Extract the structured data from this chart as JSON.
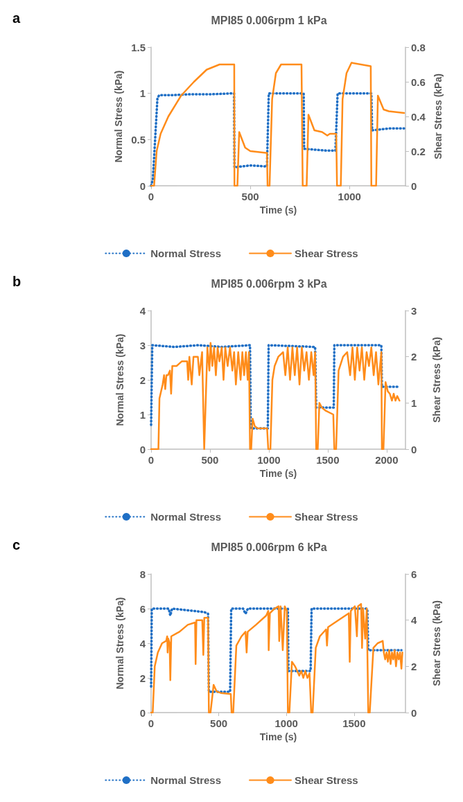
{
  "chart_data": [
    {
      "type": "line",
      "title": "MPI85 0.006rpm 1 kPa",
      "xlabel": "Time (s)",
      "ylabel": "Normal Stress (kPa)",
      "y2label": "Shear Stress (kPa)",
      "annotations": [
        "a"
      ],
      "xlim": [
        0,
        1282
      ],
      "xticks": [
        0,
        500,
        1000
      ],
      "ylim": [
        0,
        1.5
      ],
      "yticks": [
        0,
        0.5,
        1,
        1.5
      ],
      "y2lim": [
        0,
        0.8
      ],
      "y2ticks": [
        0,
        0.2,
        0.4,
        0.6,
        0.8
      ],
      "grid": false,
      "legend": "bottom",
      "marker": "none",
      "series": [
        {
          "name": "Normal Stress",
          "color": "#1f6fc5",
          "line_style": "dotted",
          "x": [
            0,
            9,
            15,
            32,
            41,
            100,
            200,
            300,
            410,
            418,
            420,
            500,
            578,
            584,
            593,
            700,
            758,
            769,
            771,
            888,
            924,
            929,
            940,
            1000,
            1094,
            1110,
            1114,
            1200,
            1275
          ],
          "values": [
            0.0,
            0.07,
            0.3,
            0.95,
            0.98,
            0.98,
            0.99,
            0.99,
            1.0,
            1.0,
            0.2,
            0.22,
            0.21,
            0.21,
            1.0,
            1.0,
            1.0,
            1.0,
            0.4,
            0.38,
            0.38,
            0.38,
            1.0,
            1.0,
            1.0,
            1.0,
            0.6,
            0.62,
            0.62
          ]
        },
        {
          "name": "Shear Stress",
          "color": "#ff8c1a",
          "line_style": "solid",
          "axis": "y2",
          "x": [
            0,
            15,
            28,
            48,
            87,
            151,
            216,
            280,
            345,
            410,
            419,
            420,
            435,
            444,
            474,
            500,
            578,
            584,
            587,
            597,
            610,
            629,
            655,
            758,
            764,
            784,
            793,
            823,
            862,
            888,
            901,
            933,
            937,
            956,
            965,
            985,
            1010,
            1107,
            1110,
            1134,
            1143,
            1172,
            1198,
            1275
          ],
          "values": [
            0,
            0,
            0.2,
            0.3,
            0.4,
            0.52,
            0.6,
            0.67,
            0.7,
            0.7,
            0.7,
            0,
            0,
            0.31,
            0.22,
            0.2,
            0.19,
            0.19,
            0,
            0,
            0.5,
            0.65,
            0.7,
            0.7,
            0,
            0,
            0.41,
            0.32,
            0.31,
            0.29,
            0.3,
            0.3,
            0,
            0,
            0.5,
            0.65,
            0.71,
            0.69,
            0,
            0,
            0.52,
            0.44,
            0.43,
            0.42
          ]
        }
      ]
    },
    {
      "type": "line",
      "title": "MPI85 0.006rpm 3 kPa",
      "xlabel": "Time (s)",
      "ylabel": "Normal Stress (kPa)",
      "y2label": "Shear Stress (kPa)",
      "annotations": [
        "b"
      ],
      "xlim": [
        0,
        2160
      ],
      "xticks": [
        0,
        500,
        1000,
        1500,
        2000
      ],
      "ylim": [
        0,
        4
      ],
      "yticks": [
        0,
        1,
        2,
        3,
        4
      ],
      "y2lim": [
        0,
        3
      ],
      "y2ticks": [
        0,
        1,
        2,
        3
      ],
      "grid": false,
      "legend": "bottom",
      "marker": "none",
      "series": [
        {
          "name": "Normal Stress",
          "color": "#1f6fc5",
          "line_style": "dotted",
          "x": [
            0,
            10,
            200,
            400,
            600,
            840,
            846,
            991,
            998,
            1393,
            1402,
            1551,
            1556,
            1955,
            1960,
            2109
          ],
          "values": [
            0.7,
            3.0,
            2.95,
            3.0,
            2.95,
            3.0,
            0.6,
            0.6,
            3.0,
            2.95,
            1.2,
            1.2,
            3.0,
            3.0,
            1.8,
            1.8
          ]
        },
        {
          "name": "Shear Stress",
          "color": "#ff8c1a",
          "line_style": "solid",
          "axis": "y2",
          "x": [
            0,
            62,
            71,
            98,
            110,
            120,
            130,
            143,
            160,
            170,
            180,
            216,
            260,
            306,
            315,
            325,
            345,
            360,
            397,
            410,
            433,
            451,
            478,
            495,
            505,
            520,
            535,
            550,
            565,
            580,
            600,
            615,
            630,
            650,
            670,
            690,
            705,
            720,
            740,
            760,
            775,
            790,
            805,
            820,
            831,
            840,
            850,
            862,
            880,
            904,
            985,
            995,
            1013,
            1030,
            1049,
            1080,
            1121,
            1140,
            1160,
            1180,
            1200,
            1220,
            1240,
            1260,
            1280,
            1300,
            1320,
            1340,
            1360,
            1380,
            1393,
            1402,
            1415,
            1429,
            1450,
            1484,
            1547,
            1556,
            1571,
            1592,
            1630,
            1665,
            1690,
            1710,
            1730,
            1750,
            1770,
            1790,
            1810,
            1830,
            1850,
            1870,
            1890,
            1910,
            1930,
            1955,
            1960,
            1973,
            1991,
            2010,
            2027,
            2045,
            2060,
            2075,
            2090,
            2109
          ],
          "values": [
            0,
            0,
            1.1,
            1.4,
            1.6,
            1.3,
            1.6,
            1.6,
            1.7,
            1.2,
            1.8,
            1.8,
            1.9,
            1.9,
            1.5,
            2.0,
            1.4,
            2.0,
            2.0,
            1.6,
            2.1,
            0,
            2.2,
            1.7,
            2.3,
            1.8,
            2.2,
            1.6,
            2.2,
            1.9,
            2.2,
            1.5,
            2.2,
            1.8,
            2.2,
            1.7,
            2.1,
            1.4,
            2.1,
            1.5,
            2.1,
            1.6,
            2.1,
            1.5,
            2.1,
            0,
            0,
            0.66,
            0.5,
            0.45,
            0.45,
            0,
            0,
            1.5,
            1.8,
            2.0,
            2.1,
            1.6,
            2.2,
            1.5,
            2.2,
            1.6,
            2.2,
            1.4,
            2.2,
            1.7,
            2.1,
            1.5,
            2.1,
            1.6,
            2.1,
            0,
            0,
            1.0,
            0.9,
            0.83,
            0.75,
            0,
            0,
            1.7,
            2.0,
            2.1,
            1.6,
            2.2,
            1.5,
            2.2,
            1.7,
            2.2,
            1.5,
            2.1,
            1.8,
            2.2,
            1.6,
            2.1,
            1.4,
            2.1,
            0,
            0,
            1.45,
            1.25,
            1.2,
            1.05,
            1.2,
            1.05,
            1.15,
            1.05
          ]
        }
      ]
    },
    {
      "type": "line",
      "title": "MPI85 0.006rpm 6 kPa",
      "xlabel": "Time (s)",
      "ylabel": "Normal Stress (kPa)",
      "y2label": "Shear Stress (kPa)",
      "annotations": [
        "c"
      ],
      "xlim": [
        0,
        1880
      ],
      "xticks": [
        0,
        500,
        1000,
        1500
      ],
      "ylim": [
        0,
        8
      ],
      "yticks": [
        0,
        2,
        4,
        6,
        8
      ],
      "y2lim": [
        0,
        6
      ],
      "y2ticks": [
        0,
        2,
        4,
        6
      ],
      "grid": false,
      "legend": "bottom",
      "marker": "none",
      "series": [
        {
          "name": "Normal Stress",
          "color": "#1f6fc5",
          "line_style": "dotted",
          "x": [
            0,
            5,
            130,
            142,
            155,
            393,
            421,
            427,
            584,
            592,
            680,
            698,
            715,
            1011,
            1015,
            1179,
            1186,
            1598,
            1605,
            1850
          ],
          "values": [
            1.5,
            6.0,
            6.0,
            5.6,
            6.0,
            5.8,
            5.7,
            1.2,
            1.2,
            6.0,
            6.0,
            5.7,
            6.0,
            6.0,
            2.4,
            2.4,
            6.0,
            6.0,
            3.6,
            3.6
          ]
        },
        {
          "name": "Shear Stress",
          "color": "#ff8c1a",
          "line_style": "solid",
          "axis": "y2",
          "x": [
            0,
            12,
            27,
            50,
            81,
            111,
            119,
            122,
            127,
            137,
            142,
            149,
            210,
            271,
            325,
            329,
            335,
            378,
            386,
            393,
            421,
            427,
            439,
            462,
            485,
            515,
            589,
            595,
            607,
            630,
            668,
            698,
            706,
            714,
            775,
            851,
            866,
            869,
            878,
            912,
            942,
            947,
            957,
            973,
            988,
            1003,
            1011,
            1022,
            1041,
            1064,
            1080,
            1095,
            1110,
            1125,
            1140,
            1155,
            1171,
            1183,
            1194,
            1217,
            1247,
            1293,
            1300,
            1308,
            1384,
            1461,
            1468,
            1476,
            1506,
            1521,
            1529,
            1552,
            1559,
            1567,
            1582,
            1594,
            1605,
            1616,
            1643,
            1674,
            1712,
            1720,
            1730,
            1740,
            1750,
            1760,
            1770,
            1780,
            1790,
            1800,
            1810,
            1820,
            1830,
            1840,
            1850,
            1857
          ],
          "values": [
            0,
            0,
            2.0,
            2.6,
            3.0,
            3.1,
            3.3,
            2.6,
            3.2,
            3.0,
            1.4,
            3.3,
            3.5,
            3.8,
            3.9,
            2.1,
            4.0,
            4.0,
            2.5,
            4.1,
            4.1,
            0,
            0,
            1.2,
            0.91,
            0.85,
            0.8,
            0,
            0,
            2.9,
            3.3,
            3.5,
            2.6,
            3.5,
            3.8,
            4.2,
            4.4,
            2.7,
            4.3,
            4.5,
            4.6,
            3.1,
            4.6,
            2.7,
            4.6,
            4.4,
            0,
            0,
            2.2,
            2.0,
            1.8,
            1.6,
            1.8,
            1.5,
            1.8,
            1.5,
            1.7,
            0,
            0,
            2.8,
            3.3,
            3.6,
            2.9,
            3.7,
            4.0,
            4.3,
            2.2,
            4.4,
            4.6,
            3.3,
            4.6,
            4.7,
            2.8,
            4.5,
            3.2,
            4.5,
            0,
            0,
            2.8,
            3.0,
            3.1,
            2.6,
            2.3,
            2.6,
            2.2,
            2.7,
            2.1,
            2.6,
            2.3,
            2.7,
            2.0,
            2.6,
            2.3,
            2.6,
            1.9,
            2.6
          ]
        }
      ]
    }
  ]
}
